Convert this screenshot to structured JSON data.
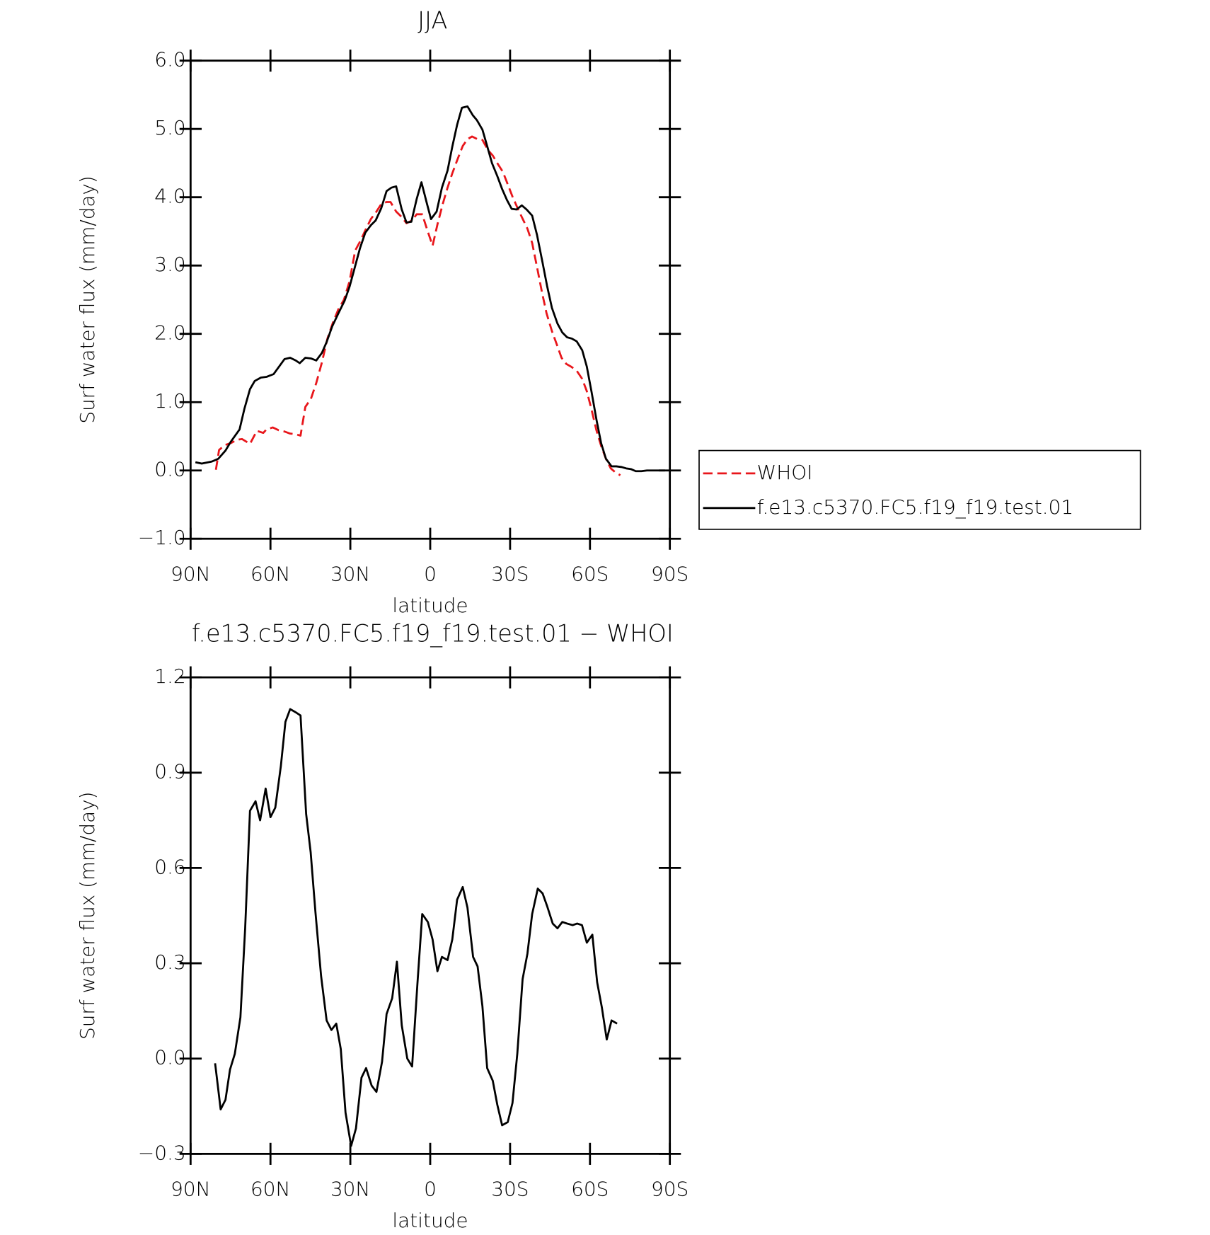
{
  "chart_data": [
    {
      "type": "line",
      "title": "JJA",
      "xlabel": "latitude",
      "ylabel": "Surf water flux (mm/day)",
      "xlim": [
        90,
        -90
      ],
      "xticks": [
        {
          "value": 90,
          "label": "90N"
        },
        {
          "value": 60,
          "label": "60N"
        },
        {
          "value": 30,
          "label": "30N"
        },
        0,
        {
          "value": -30,
          "label": "30S"
        },
        {
          "value": -60,
          "label": "60S"
        },
        {
          "value": -90,
          "label": "90S"
        }
      ],
      "ylim": [
        -1,
        6
      ],
      "yticks": [
        {
          "value": -1,
          "label": "−1.0"
        },
        {
          "value": 0,
          "label": "0.0"
        },
        {
          "value": 1,
          "label": "1.0"
        },
        {
          "value": 2,
          "label": "2.0"
        },
        {
          "value": 3,
          "label": "3.0"
        },
        {
          "value": 4,
          "label": "4.0"
        },
        {
          "value": 5,
          "label": "5.0"
        },
        {
          "value": 6,
          "label": "6.0"
        }
      ],
      "legend": "right",
      "series": [
        {
          "name": "WHOI",
          "color": "#e8161b",
          "dashed": true,
          "x": [
            80.5,
            79.3,
            77.2,
            74.9,
            72.5,
            70.7,
            67.7,
            65.1,
            62.7,
            61.5,
            59.1,
            57.0,
            54.7,
            52.6,
            50.5,
            48.7,
            46.9,
            44.8,
            42.8,
            40.7,
            38.6,
            36.5,
            34.5,
            32.4,
            30.3,
            28.2,
            26.1,
            24.1,
            22.3,
            20.2,
            18.4,
            16.4,
            14.9,
            12.8,
            10.7,
            8.9,
            6.8,
            5.1,
            3.0,
            1.2,
            -0.9,
            -2.7,
            -4.7,
            -6.5,
            -8.3,
            -10.1,
            -12.2,
            -14.0,
            -15.7,
            -17.8,
            -19.6,
            -21.7,
            -23.5,
            -25.2,
            -27.3,
            -28.8,
            -30.9,
            -32.7,
            -34.4,
            -36.5,
            -38.3,
            -40.1,
            -41.9,
            -43.7,
            -45.7,
            -47.5,
            -49.3,
            -51.1,
            -52.9,
            -55.0,
            -57.1,
            -58.8,
            -60.6,
            -62.4,
            -64.2,
            -66.0,
            -67.8,
            -69.6,
            -71.4
          ],
          "values": [
            0.01,
            0.3,
            0.37,
            0.4,
            0.45,
            0.46,
            0.39,
            0.58,
            0.55,
            0.6,
            0.63,
            0.59,
            0.57,
            0.54,
            0.53,
            0.51,
            0.93,
            1.05,
            1.28,
            1.58,
            1.93,
            2.17,
            2.36,
            2.5,
            2.77,
            3.22,
            3.37,
            3.54,
            3.68,
            3.79,
            3.9,
            3.93,
            3.93,
            3.79,
            3.71,
            3.62,
            3.66,
            3.75,
            3.75,
            3.53,
            3.29,
            3.6,
            3.9,
            4.14,
            4.35,
            4.54,
            4.75,
            4.85,
            4.89,
            4.85,
            4.84,
            4.69,
            4.61,
            4.5,
            4.37,
            4.22,
            4.01,
            3.85,
            3.71,
            3.54,
            3.33,
            2.98,
            2.62,
            2.3,
            2.04,
            1.85,
            1.65,
            1.56,
            1.52,
            1.46,
            1.34,
            1.16,
            0.89,
            0.59,
            0.36,
            0.17,
            0.03,
            -0.03,
            -0.07
          ]
        },
        {
          "name": "f.e13.c5370.FC5.f19_f19.test.01",
          "color": "#000000",
          "dashed": false,
          "x": [
            88.2,
            85.8,
            82.0,
            79.6,
            76.9,
            74.9,
            71.6,
            69.8,
            67.7,
            65.9,
            63.6,
            61.5,
            58.8,
            54.7,
            52.6,
            50.5,
            49.0,
            46.9,
            44.8,
            42.8,
            40.7,
            38.9,
            36.8,
            34.5,
            32.1,
            30.3,
            28.5,
            26.4,
            24.4,
            22.3,
            20.5,
            18.4,
            16.4,
            14.6,
            12.8,
            10.7,
            8.9,
            7.1,
            5.1,
            3.3,
            1.2,
            -0.3,
            -2.4,
            -4.4,
            -6.5,
            -8.3,
            -10.1,
            -11.9,
            -14.0,
            -16.0,
            -17.5,
            -19.6,
            -21.4,
            -23.2,
            -25.2,
            -27.0,
            -28.8,
            -30.6,
            -32.4,
            -34.4,
            -36.2,
            -38.3,
            -40.1,
            -42.2,
            -43.9,
            -45.7,
            -47.8,
            -49.6,
            -51.4,
            -53.2,
            -55.0,
            -57.1,
            -58.8,
            -60.6,
            -62.4,
            -64.2,
            -66.0,
            -68.1,
            -69.9,
            -71.9,
            -73.6,
            -75.4,
            -77.2,
            -79.3,
            -81.4,
            -88.2
          ],
          "values": [
            0.12,
            0.1,
            0.13,
            0.17,
            0.29,
            0.42,
            0.6,
            0.9,
            1.19,
            1.31,
            1.36,
            1.37,
            1.41,
            1.63,
            1.65,
            1.61,
            1.57,
            1.65,
            1.64,
            1.61,
            1.72,
            1.88,
            2.11,
            2.3,
            2.49,
            2.69,
            2.95,
            3.25,
            3.48,
            3.59,
            3.66,
            3.84,
            4.09,
            4.14,
            4.16,
            3.82,
            3.63,
            3.64,
            3.97,
            4.22,
            3.9,
            3.68,
            3.79,
            4.14,
            4.39,
            4.74,
            5.06,
            5.31,
            5.33,
            5.2,
            5.13,
            4.99,
            4.75,
            4.5,
            4.31,
            4.12,
            3.96,
            3.83,
            3.82,
            3.88,
            3.82,
            3.73,
            3.45,
            3.04,
            2.7,
            2.38,
            2.15,
            2.02,
            1.95,
            1.93,
            1.89,
            1.76,
            1.52,
            1.15,
            0.75,
            0.4,
            0.17,
            0.06,
            0.06,
            0.05,
            0.03,
            0.02,
            -0.01,
            -0.01,
            0.0,
            0.0
          ]
        }
      ]
    },
    {
      "type": "line",
      "title": "f.e13.c5370.FC5.f19_f19.test.01 − WHOI",
      "xlabel": "latitude",
      "ylabel": "Surf water flux (mm/day)",
      "xlim": [
        90,
        -90
      ],
      "xticks": [
        {
          "value": 90,
          "label": "90N"
        },
        {
          "value": 60,
          "label": "60N"
        },
        {
          "value": 30,
          "label": "30N"
        },
        0,
        {
          "value": -30,
          "label": "30S"
        },
        {
          "value": -60,
          "label": "60S"
        },
        {
          "value": -90,
          "label": "90S"
        }
      ],
      "ylim": [
        -0.3,
        1.2
      ],
      "yticks": [
        {
          "value": -0.3,
          "label": "−0.3"
        },
        {
          "value": 0,
          "label": "0.0"
        },
        0.3,
        0.6,
        0.9,
        1.2
      ],
      "series": [
        {
          "color": "#000000",
          "dashed": false,
          "x": [
            80.8,
            78.7,
            76.9,
            75.2,
            73.4,
            71.3,
            69.5,
            67.7,
            65.6,
            63.9,
            61.8,
            60.0,
            58.2,
            56.1,
            54.4,
            52.6,
            50.5,
            48.7,
            46.6,
            44.9,
            43.1,
            41.0,
            38.9,
            37.1,
            35.3,
            33.6,
            31.8,
            29.7,
            27.9,
            25.8,
            24.1,
            22.0,
            20.2,
            18.1,
            16.4,
            14.3,
            12.5,
            10.7,
            8.6,
            6.8,
            4.8,
            3.0,
            0.9,
            -0.9,
            -2.7,
            -4.4,
            -6.5,
            -8.3,
            -10.1,
            -12.2,
            -14.0,
            -16.1,
            -17.8,
            -19.6,
            -21.4,
            -23.5,
            -25.2,
            -27.0,
            -29.1,
            -30.9,
            -32.7,
            -34.7,
            -36.5,
            -38.3,
            -40.4,
            -42.2,
            -43.9,
            -46.0,
            -47.8,
            -49.6,
            -51.4,
            -53.5,
            -55.2,
            -57.0,
            -58.8,
            -60.9,
            -62.7,
            -64.5,
            -66.3,
            -68.1,
            -70.2
          ],
          "values": [
            -0.015,
            -0.16,
            -0.13,
            -0.035,
            0.015,
            0.13,
            0.41,
            0.78,
            0.81,
            0.75,
            0.85,
            0.76,
            0.79,
            0.92,
            1.06,
            1.1,
            1.09,
            1.08,
            0.77,
            0.65,
            0.46,
            0.26,
            0.12,
            0.09,
            0.11,
            0.03,
            -0.17,
            -0.275,
            -0.22,
            -0.06,
            -0.03,
            -0.085,
            -0.105,
            -0.01,
            0.14,
            0.19,
            0.305,
            0.105,
            0.0,
            -0.025,
            0.235,
            0.455,
            0.43,
            0.375,
            0.275,
            0.32,
            0.31,
            0.375,
            0.5,
            0.54,
            0.475,
            0.32,
            0.29,
            0.165,
            -0.03,
            -0.07,
            -0.145,
            -0.21,
            -0.2,
            -0.14,
            0.015,
            0.25,
            0.33,
            0.455,
            0.535,
            0.52,
            0.48,
            0.425,
            0.41,
            0.43,
            0.425,
            0.42,
            0.425,
            0.42,
            0.365,
            0.39,
            0.24,
            0.16,
            0.06,
            0.12,
            0.11
          ]
        }
      ]
    }
  ]
}
